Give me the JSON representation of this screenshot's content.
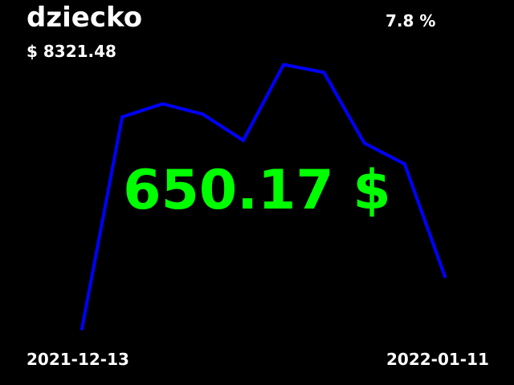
{
  "header": {
    "title": "dziecko",
    "change_percent": "7.8 %",
    "total": "$ 8321.48"
  },
  "main": {
    "big_value": "650.17 $",
    "big_value_color": "#00ff00"
  },
  "footer": {
    "date_start": "2021-12-13",
    "date_end": "2022-01-11"
  },
  "chart_data": {
    "type": "line",
    "x_start": "2021-12-13",
    "x_end": "2022-01-11",
    "series": [
      {
        "color": "#0000ff",
        "values": [
          0,
          81,
          86,
          82,
          72,
          101,
          98,
          71,
          63,
          20
        ]
      }
    ],
    "ylim": [
      0,
      103
    ],
    "grid": false
  }
}
